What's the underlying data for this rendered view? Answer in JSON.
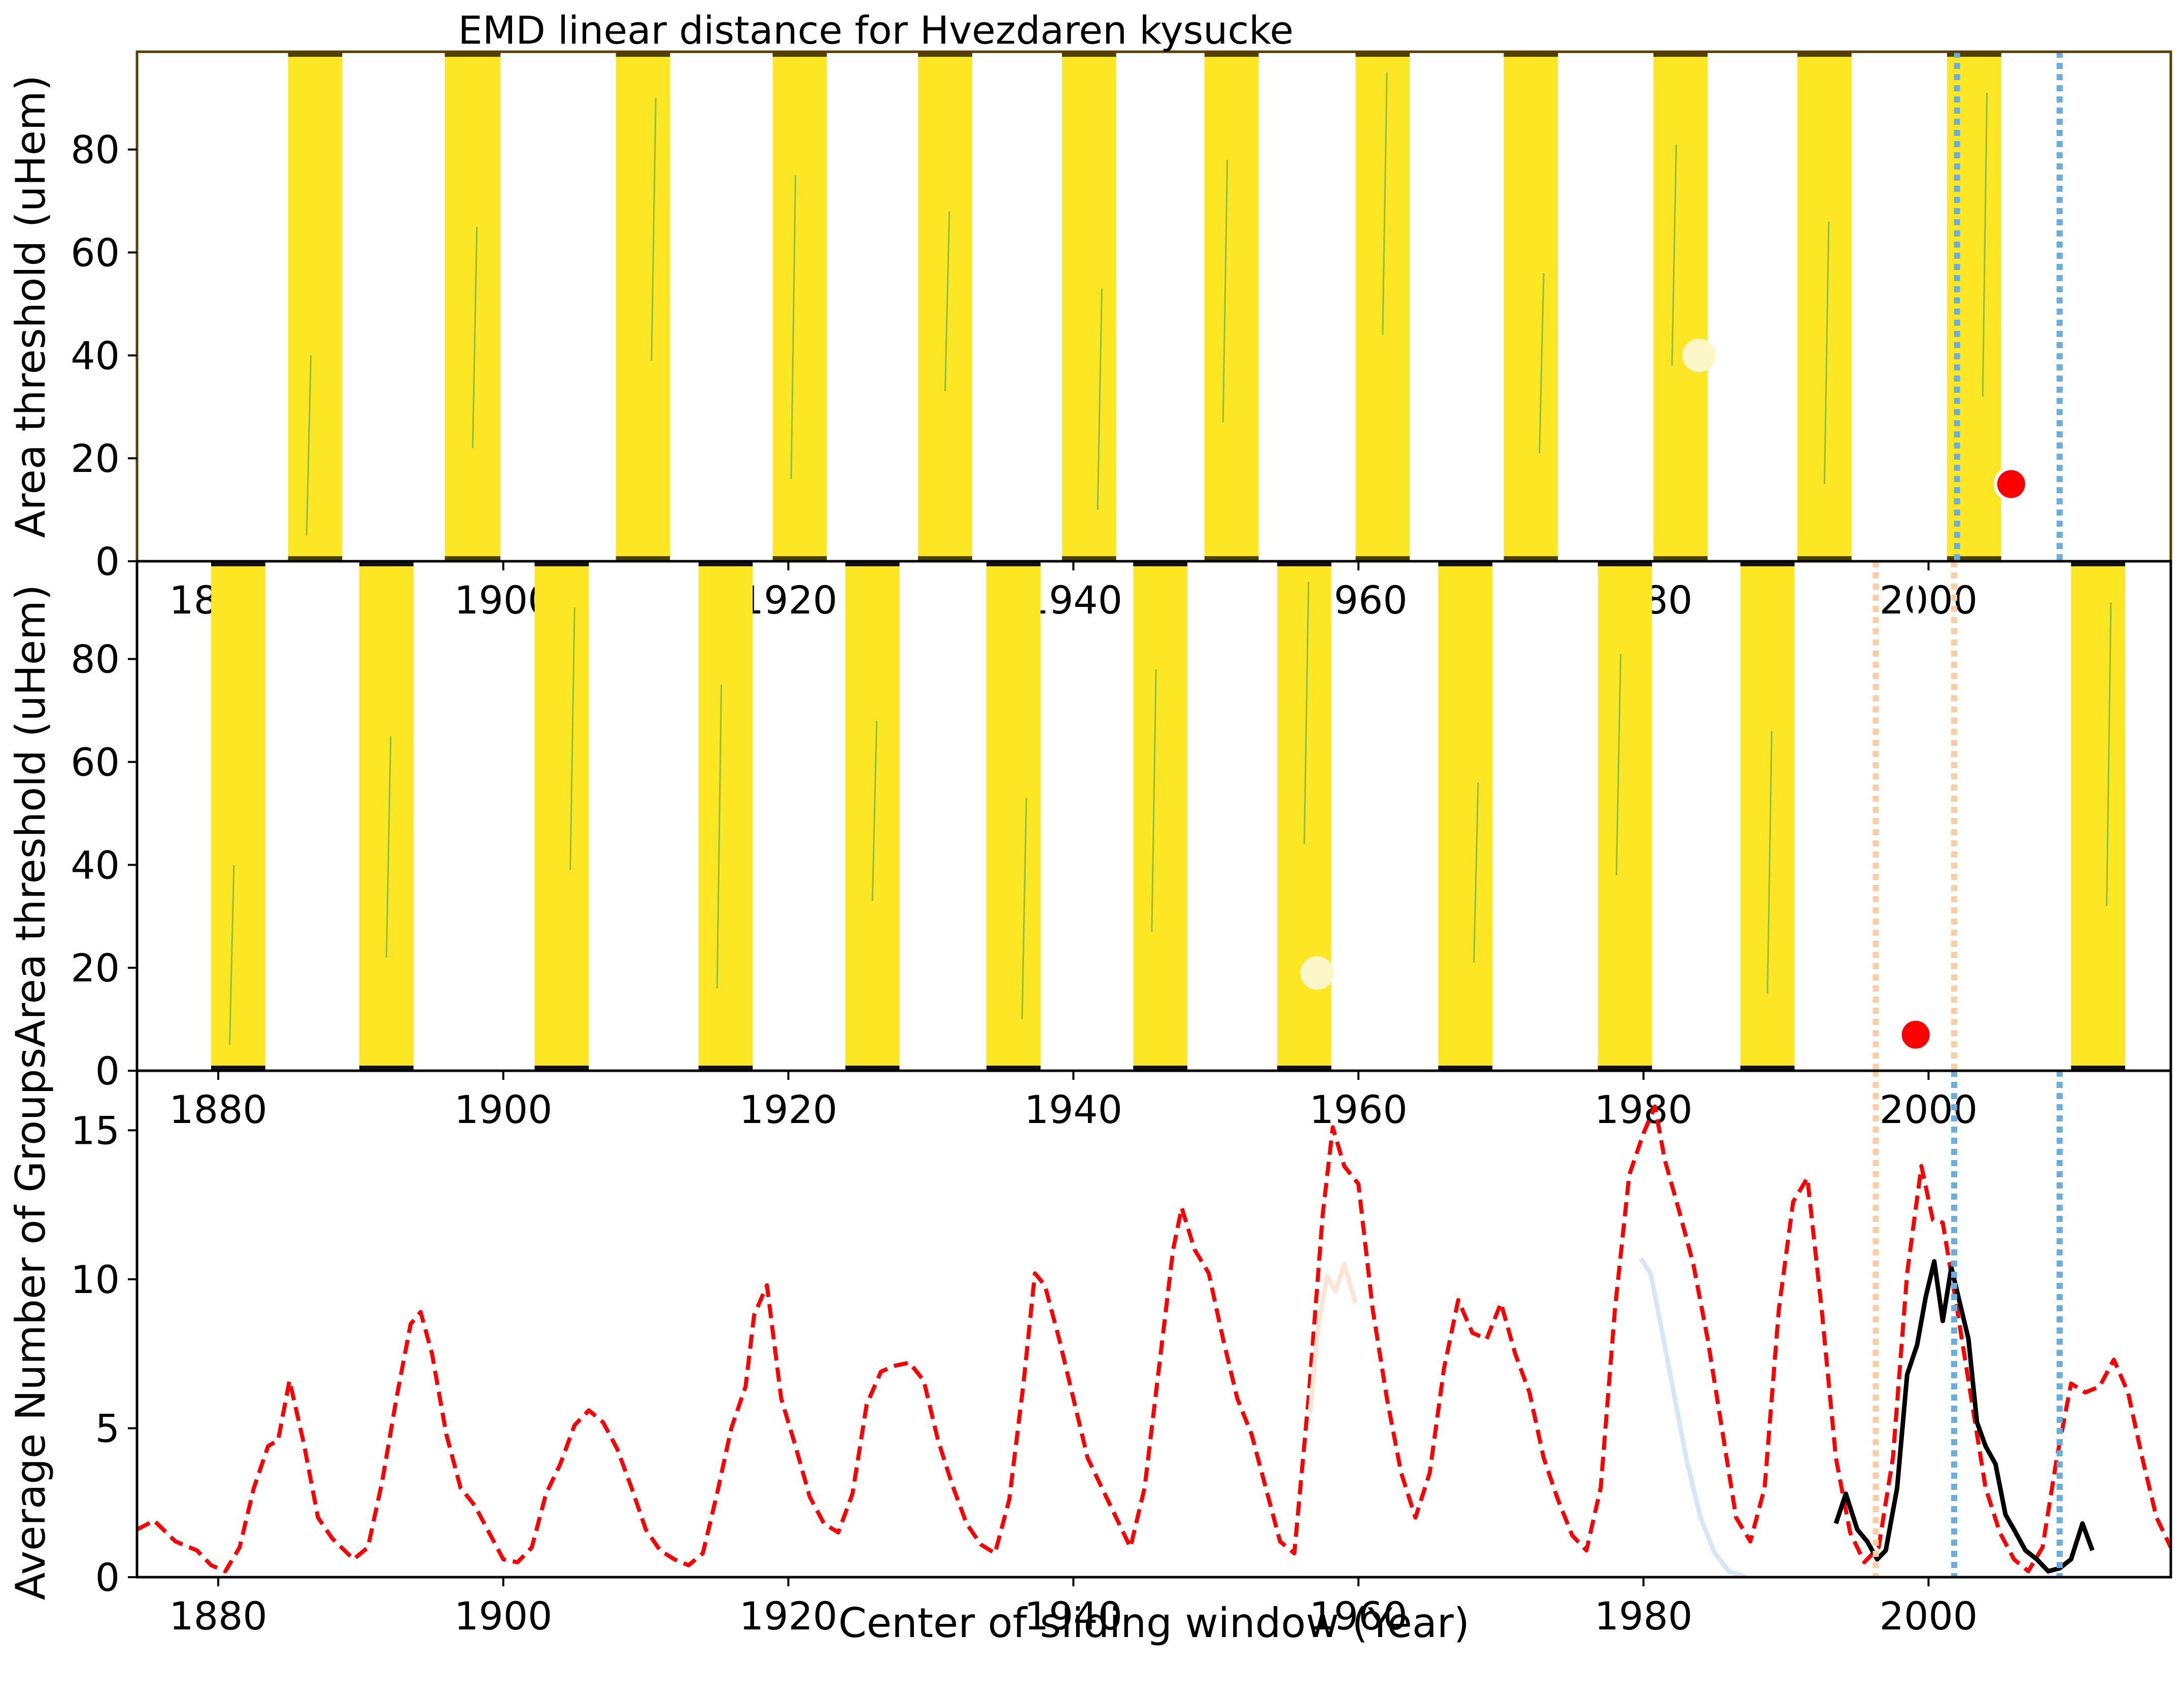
{
  "title": "EMD linear distance for Hvezdaren kysucke",
  "colors": {
    "band": "#fde725",
    "band_streak": "#2a9d5c",
    "band_edge_top": "#4d4200",
    "band_edge_bottom": "#111111",
    "red": "#ff0000",
    "blue_dotted": "#6aaee0",
    "orange_dotted": "#fdcda1",
    "light_blue": "#d6e6f7",
    "light_orange": "#fde5d6",
    "marker_pale": "#fdf6c8",
    "black": "#000000",
    "panel1_frame": "#5a3e00",
    "panel2_frame": "#000000"
  },
  "chart_data": [
    {
      "type": "heatmap",
      "panel": "top",
      "title": "EMD linear distance for Hvezdaren kysucke",
      "ylabel": "Area threshold (uHem)",
      "xlim": [
        1874.3,
        2017
      ],
      "ylim": [
        0,
        99
      ],
      "x_ticks": [
        1880,
        1900,
        1920,
        1940,
        1960,
        1980,
        2000
      ],
      "x_tick_labels": [
        "1880",
        "1900",
        "1920",
        "1940",
        "1960",
        "1980",
        "2000"
      ],
      "y_ticks": [
        0,
        20,
        40,
        60,
        80
      ],
      "y_tick_labels": [
        "0",
        "20",
        "40",
        "60",
        "80"
      ],
      "bands": [
        [
          1884.9,
          1888.7
        ],
        [
          1895.9,
          1899.8
        ],
        [
          1907.9,
          1911.7
        ],
        [
          1918.9,
          1922.7
        ],
        [
          1929.1,
          1932.9
        ],
        [
          1939.2,
          1943.0
        ],
        [
          1949.2,
          1953.0
        ],
        [
          1959.8,
          1963.6
        ],
        [
          1970.2,
          1974.0
        ],
        [
          1980.7,
          1984.5
        ],
        [
          1990.8,
          1994.6
        ],
        [
          2001.3,
          2005.1
        ]
      ],
      "best_point": {
        "x": 2005.8,
        "y": 15
      },
      "alt_point": {
        "x": 1983.9,
        "y": 40
      },
      "dashed_line_x": 2005.8,
      "dotted_lines_x": [
        2002.0,
        2009.2
      ]
    },
    {
      "type": "heatmap",
      "panel": "middle",
      "ylabel": "Area threshold (uHem)",
      "xlim": [
        1874.3,
        2017
      ],
      "ylim": [
        0,
        99
      ],
      "x_ticks": [
        1880,
        1900,
        1920,
        1940,
        1960,
        1980,
        2000
      ],
      "x_tick_labels": [
        "1880",
        "1900",
        "1920",
        "1940",
        "1960",
        "1980",
        "2000"
      ],
      "y_ticks": [
        0,
        20,
        40,
        60,
        80
      ],
      "y_tick_labels": [
        "0",
        "20",
        "40",
        "60",
        "80"
      ],
      "bands": [
        [
          1879.5,
          1883.3
        ],
        [
          1889.9,
          1893.7
        ],
        [
          1902.2,
          1906.0
        ],
        [
          1913.7,
          1917.5
        ],
        [
          1924.0,
          1927.8
        ],
        [
          1933.9,
          1937.7
        ],
        [
          1944.2,
          1948.0
        ],
        [
          1954.3,
          1958.1
        ],
        [
          1965.6,
          1969.4
        ],
        [
          1976.8,
          1980.6
        ],
        [
          1986.8,
          1990.6
        ],
        [
          2010.0,
          2013.8
        ]
      ],
      "best_point": {
        "x": 1999.1,
        "y": 7
      },
      "alt_point": {
        "x": 1957.1,
        "y": 19
      },
      "dashed_line_x": 1999.1,
      "dotted_lines_x": [
        1996.3,
        2001.8
      ]
    },
    {
      "type": "line",
      "panel": "bottom",
      "xlabel": "Center of sliding window (Year)",
      "ylabel": "Average Number of Groups",
      "xlim": [
        1874.3,
        2017
      ],
      "ylim": [
        0,
        17
      ],
      "x_ticks": [
        1880,
        1900,
        1920,
        1940,
        1960,
        1980,
        2000
      ],
      "x_tick_labels": [
        "1880",
        "1900",
        "1920",
        "1940",
        "1960",
        "1980",
        "2000"
      ],
      "y_ticks": [
        0,
        5,
        10,
        15
      ],
      "y_tick_labels": [
        "0",
        "5",
        "10",
        "15"
      ],
      "vertical_lines": [
        {
          "x": 1996.3,
          "style": "dotted",
          "color": "orange"
        },
        {
          "x": 2001.8,
          "style": "dotted",
          "color": "blue"
        },
        {
          "x": 2009.2,
          "style": "dotted",
          "color": "blue"
        }
      ],
      "series": [
        {
          "style": "dashed",
          "color": "red",
          "x": [
            1874.3,
            1875.5,
            1877,
            1878.5,
            1879.5,
            1880.5,
            1881.5,
            1882.5,
            1883.5,
            1884.2,
            1885,
            1886,
            1887,
            1888,
            1889.5,
            1890.5,
            1891.5,
            1892.5,
            1893.5,
            1894.2,
            1895,
            1896,
            1897,
            1898,
            1899,
            1900,
            1901,
            1902,
            1903,
            1904,
            1905,
            1906,
            1907,
            1908,
            1909,
            1910,
            1911,
            1912,
            1913,
            1914,
            1915,
            1916,
            1917,
            1917.6,
            1918.5,
            1919.5,
            1920.5,
            1921.5,
            1922.5,
            1923.5,
            1924.5,
            1925.5,
            1926.5,
            1927.5,
            1928.5,
            1929.5,
            1930.5,
            1931.5,
            1932.5,
            1933.5,
            1934.5,
            1935.5,
            1936.5,
            1937.3,
            1938,
            1939,
            1940,
            1941,
            1942,
            1943,
            1944,
            1945,
            1946,
            1947,
            1947.6,
            1948.5,
            1949.5,
            1950.5,
            1951.5,
            1952.5,
            1953.5,
            1954.5,
            1955.5,
            1956.5,
            1957.5,
            1958.2,
            1959,
            1960,
            1961,
            1962,
            1963,
            1964,
            1965,
            1966,
            1967,
            1968,
            1969,
            1970,
            1971,
            1972,
            1973,
            1974,
            1975,
            1976,
            1977,
            1978,
            1979,
            1980,
            1980.8,
            1981.5,
            1982.5,
            1983.5,
            1984.5,
            1985.5,
            1986.5,
            1987.5,
            1988.5,
            1989.5,
            1990.5,
            1991.5,
            1992.5,
            1993.5,
            1994.5,
            1995.5,
            1996.5,
            1997.5,
            1998.5,
            1999.5,
            2000.3,
            2001,
            2002,
            2003,
            2004,
            2005,
            2006,
            2007,
            2008,
            2009,
            2010,
            2011,
            2012,
            2013,
            2014,
            2015,
            2016,
            2017
          ],
          "y": [
            1.6,
            1.9,
            1.2,
            0.9,
            0.4,
            0.2,
            1.0,
            3.0,
            4.4,
            4.6,
            6.6,
            4.5,
            2.0,
            1.3,
            0.6,
            1.0,
            3.2,
            6.0,
            8.5,
            8.9,
            7.5,
            4.8,
            3.0,
            2.4,
            1.5,
            0.6,
            0.5,
            1.0,
            2.8,
            3.8,
            5.1,
            5.6,
            5.2,
            4.3,
            3.0,
            1.6,
            0.9,
            0.6,
            0.4,
            0.8,
            2.8,
            5.0,
            6.4,
            8.8,
            9.8,
            6.0,
            4.4,
            2.7,
            1.8,
            1.5,
            2.8,
            5.8,
            6.9,
            7.1,
            7.2,
            6.6,
            4.6,
            3.1,
            1.8,
            1.1,
            0.8,
            2.6,
            6.5,
            10.2,
            9.8,
            8.0,
            6.0,
            4.0,
            3.0,
            2.0,
            1.0,
            3.0,
            7.0,
            11.0,
            12.4,
            11.0,
            10.2,
            8.0,
            6.0,
            4.8,
            3.0,
            1.2,
            0.8,
            6.0,
            12.2,
            15.1,
            13.8,
            13.2,
            9.0,
            6.0,
            3.5,
            2.0,
            3.5,
            7.0,
            9.3,
            8.2,
            8.0,
            9.2,
            7.5,
            6.2,
            4.0,
            2.6,
            1.4,
            0.9,
            3.0,
            9.0,
            13.5,
            14.9,
            15.8,
            14.0,
            12.3,
            10.5,
            8.0,
            5.0,
            2.0,
            1.2,
            3.0,
            9.0,
            12.6,
            13.4,
            9.0,
            4.0,
            1.5,
            0.5,
            1.0,
            4.0,
            10.2,
            13.8,
            12.0,
            11.9,
            9.0,
            6.0,
            3.0,
            1.5,
            0.6,
            0.2,
            1.0,
            4.0,
            6.5,
            6.2,
            6.4,
            7.3,
            6.2,
            4.0,
            2.0,
            1.0
          ]
        },
        {
          "style": "solid",
          "color": "light_blue",
          "x": [
            1979.8,
            1980.5,
            1981.2,
            1982,
            1983,
            1984,
            1985,
            1986,
            1987.2
          ],
          "y": [
            10.7,
            10.2,
            8.5,
            6.5,
            4.0,
            2.0,
            0.8,
            0.2,
            0.0
          ]
        },
        {
          "style": "solid",
          "color": "light_orange",
          "x": [
            1956.6,
            1957.2,
            1957.8,
            1958.4,
            1959,
            1959.8
          ],
          "y": [
            5.5,
            8.5,
            10.1,
            9.6,
            10.5,
            9.2
          ]
        },
        {
          "style": "solid",
          "color": "black",
          "x": [
            1993.5,
            1994.2,
            1995,
            1995.7,
            1996.4,
            1997,
            1997.8,
            1998.5,
            1999.2,
            1999.8,
            2000.4,
            2001,
            2001.6,
            2002.2,
            2002.8,
            2003.4,
            2004,
            2004.7,
            2005.4,
            2006,
            2006.8,
            2007.6,
            2008.4,
            2009.2,
            2010,
            2010.8,
            2011.5
          ],
          "y": [
            1.8,
            2.8,
            1.6,
            1.2,
            0.6,
            0.9,
            3.0,
            6.8,
            7.8,
            9.4,
            10.6,
            8.6,
            10.4,
            9.2,
            8.0,
            5.2,
            4.4,
            3.8,
            2.1,
            1.6,
            0.9,
            0.6,
            0.2,
            0.3,
            0.6,
            1.8,
            0.9
          ]
        }
      ]
    }
  ]
}
